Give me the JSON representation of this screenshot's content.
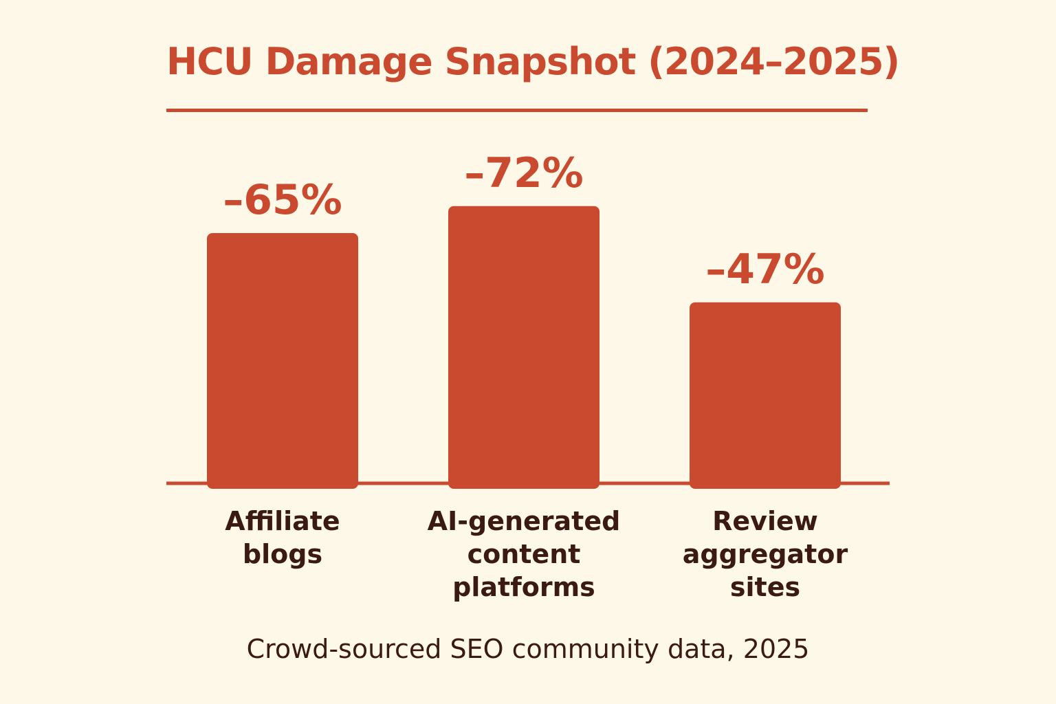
{
  "colors": {
    "background": "#fdf8e8",
    "accent": "#c94a2e",
    "text_dark": "#3b1a14"
  },
  "caption": "Crowd-sourced SEO community data, 2025",
  "chart_data": {
    "type": "bar",
    "title": "HCU Damage Snapshot (2024–2025)",
    "categories": [
      [
        "Affiliate",
        "blogs"
      ],
      [
        "AI-generated",
        "content",
        "platforms"
      ],
      [
        "Review",
        "aggregator",
        "sites"
      ]
    ],
    "values": [
      -65,
      -72,
      -47
    ],
    "value_labels": [
      "–65%",
      "–72%",
      "–47%"
    ],
    "grid": false
  }
}
